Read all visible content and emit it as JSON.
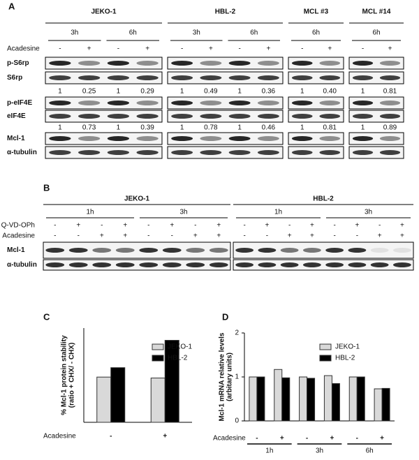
{
  "panel_a": {
    "label": "A",
    "treatment": "Acadesine",
    "blocks": [
      {
        "name": "JEKO-1",
        "times": [
          "3h",
          "6h"
        ],
        "lanes": [
          "-",
          "+",
          "-",
          "+"
        ]
      },
      {
        "name": "HBL-2",
        "times": [
          "3h",
          "6h"
        ],
        "lanes": [
          "-",
          "+",
          "-",
          "+"
        ]
      },
      {
        "name": "MCL #3",
        "times": [
          "6h"
        ],
        "lanes": [
          "-",
          "+"
        ]
      },
      {
        "name": "MCL #14",
        "times": [
          "6h"
        ],
        "lanes": [
          "-",
          "+"
        ]
      }
    ],
    "rows": [
      "p-S6rp",
      "S6rp",
      "p-eIF4E",
      "eIF4E",
      "Mcl-1",
      "α-tubulin"
    ],
    "ratios": [
      [
        [
          "1",
          "0.25",
          "1",
          "0.29"
        ],
        [
          "1",
          "0.49",
          "1",
          "0.36"
        ],
        [
          "1",
          "0.40"
        ],
        [
          "1",
          "0.81"
        ]
      ],
      [
        [
          "1",
          "0.73",
          "1",
          "0.39"
        ],
        [
          "1",
          "0.78",
          "1",
          "0.46"
        ],
        [
          "1",
          "0.81"
        ],
        [
          "1",
          "0.89"
        ]
      ]
    ]
  },
  "panel_b": {
    "label": "B",
    "treatments": [
      "Q-VD-OPh",
      "Acadesine"
    ],
    "blocks": [
      {
        "name": "JEKO-1",
        "times": [
          "1h",
          "3h"
        ],
        "lanes": [
          [
            "-",
            "+",
            "-",
            "+",
            "-",
            "+",
            "-",
            "+"
          ],
          [
            "-",
            "-",
            "+",
            "+",
            "-",
            "-",
            "+",
            "+"
          ]
        ]
      },
      {
        "name": "HBL-2",
        "times": [
          "1h",
          "3h"
        ],
        "lanes": [
          [
            "-",
            "+",
            "-",
            "+",
            "-",
            "+",
            "-",
            "+"
          ],
          [
            "-",
            "-",
            "+",
            "+",
            "-",
            "-",
            "+",
            "+"
          ]
        ]
      }
    ],
    "rows": [
      "Mcl-1",
      "α-tubulin"
    ]
  },
  "chart_data": [
    {
      "type": "bar",
      "label": "C",
      "y_label": [
        "% Mcl-1 protein stability",
        "(ratio + CHX/ - CHX)"
      ],
      "x_label": "Acadesine",
      "categories": [
        "-",
        "+"
      ],
      "ylim": [
        0,
        100
      ],
      "series": [
        {
          "name": "JEKO-1",
          "color": "#d9d9d9",
          "values": [
            48,
            47
          ]
        },
        {
          "name": "HBL-2",
          "color": "#000000",
          "values": [
            58,
            87
          ]
        }
      ]
    },
    {
      "type": "bar",
      "label": "D",
      "y_label": [
        "Mcl-1 mRNA relative levels",
        "(arbitary units)"
      ],
      "x_label": "Acadesine",
      "categories": [
        "-",
        "+",
        "-",
        "+",
        "-",
        "+"
      ],
      "groups": [
        "1h",
        "3h",
        "6h"
      ],
      "ylim": [
        0,
        2
      ],
      "yticks": [
        0,
        1,
        2
      ],
      "series": [
        {
          "name": "JEKO-1",
          "color": "#d9d9d9",
          "values": [
            1.0,
            1.17,
            1.0,
            1.03,
            1.0,
            0.73
          ]
        },
        {
          "name": "HBL-2",
          "color": "#000000",
          "values": [
            1.0,
            0.98,
            0.97,
            0.85,
            1.0,
            0.74
          ]
        }
      ]
    }
  ]
}
